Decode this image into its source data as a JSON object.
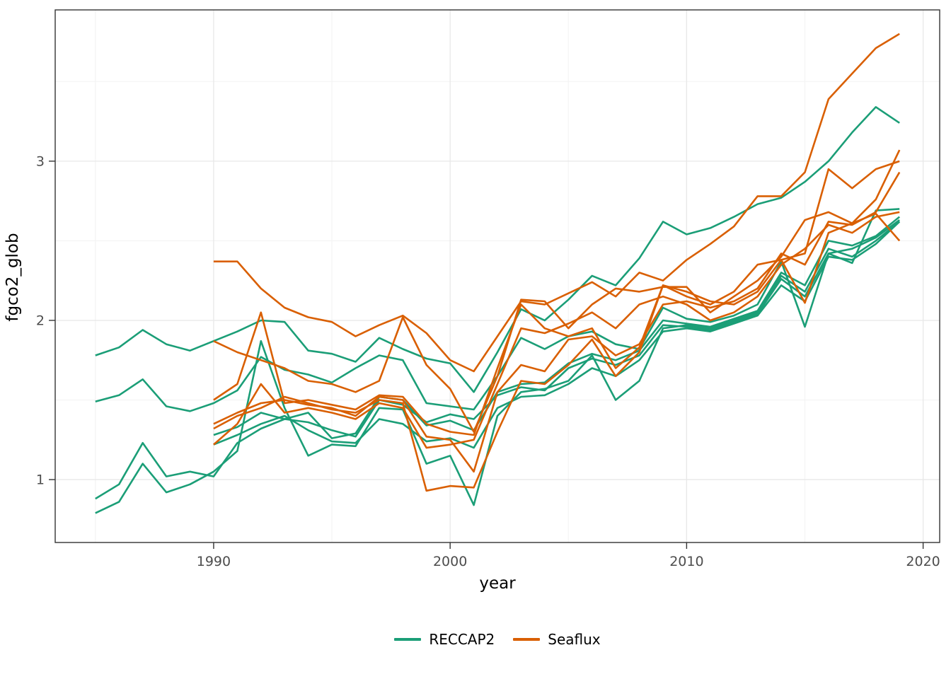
{
  "chart_data": {
    "type": "line",
    "title": "",
    "xlabel": "year",
    "ylabel": "fgco2_glob",
    "xlim": [
      1983.3,
      2020.7
    ],
    "ylim": [
      0.605,
      3.95
    ],
    "x_major_ticks": [
      1990,
      2000,
      2010,
      2020
    ],
    "x_minor_gridlines": [
      1985,
      1995,
      2005,
      2015
    ],
    "y_major_ticks": [
      1,
      2,
      3
    ],
    "y_minor_gridlines": [
      1.5,
      2.5,
      3.5
    ],
    "grid": true,
    "panel_background": "#ffffff",
    "major_grid_color": "#e8e8e8",
    "minor_grid_color": "#f4f4f4",
    "panel_border_color": "#333333",
    "tick_label_color": "#4d4d4d",
    "legend_position": "bottom",
    "legend_entries": [
      {
        "label": "RECCAP2",
        "color": "#1B9E77"
      },
      {
        "label": "Seaflux",
        "color": "#D95F02"
      }
    ],
    "series": [
      {
        "name": "RECCAP2-1",
        "group": "RECCAP2",
        "color": "#1B9E77",
        "start_year": 1985,
        "values": [
          1.78,
          1.83,
          1.94,
          1.85,
          1.81,
          1.87,
          1.93,
          2.0,
          1.99,
          1.81,
          1.79,
          1.74,
          1.89,
          1.82,
          1.76,
          1.73,
          1.55,
          1.8,
          2.07,
          2.0,
          2.13,
          2.28,
          2.22,
          2.39,
          2.62,
          2.54,
          2.58,
          2.65,
          2.73,
          2.77,
          2.87,
          3.0,
          3.18,
          3.34,
          3.24
        ]
      },
      {
        "name": "RECCAP2-2",
        "group": "RECCAP2",
        "color": "#1B9E77",
        "start_year": 1985,
        "values": [
          1.49,
          1.53,
          1.63,
          1.46,
          1.43,
          1.48,
          1.56,
          1.77,
          1.69,
          1.66,
          1.61,
          1.7,
          1.78,
          1.75,
          1.48,
          1.46,
          1.44,
          1.65,
          1.89,
          1.82,
          1.9,
          1.93,
          1.85,
          1.82,
          2.08,
          2.01,
          1.99,
          2.03,
          2.1,
          2.37,
          1.96,
          2.42,
          2.36,
          2.69,
          2.7
        ]
      },
      {
        "name": "RECCAP2-3",
        "group": "RECCAP2",
        "color": "#1B9E77",
        "start_year": 1985,
        "values": [
          0.88,
          0.97,
          1.23,
          1.02,
          1.05,
          1.02,
          1.23,
          1.32,
          1.38,
          1.42,
          1.26,
          1.29,
          1.52,
          1.5,
          1.34,
          1.37,
          1.31,
          1.55,
          1.6,
          1.61,
          1.73,
          1.79,
          1.75,
          1.81,
          2.0,
          1.98,
          1.96,
          2.01,
          2.06,
          2.3,
          2.22,
          2.5,
          2.47,
          2.53,
          2.65
        ]
      },
      {
        "name": "RECCAP2-4",
        "group": "RECCAP2",
        "color": "#1B9E77",
        "start_year": 1985,
        "values": [
          0.79,
          0.86,
          1.1,
          0.92,
          0.97,
          1.05,
          1.18,
          1.87,
          1.45,
          1.15,
          1.22,
          1.21,
          1.45,
          1.44,
          1.1,
          1.15,
          0.84,
          1.4,
          1.55,
          1.57,
          1.62,
          1.78,
          1.5,
          1.62,
          1.95,
          1.97,
          1.95,
          2.0,
          2.05,
          2.28,
          2.18,
          2.45,
          2.4,
          2.5,
          2.62
        ]
      },
      {
        "name": "RECCAP2-5",
        "group": "RECCAP2",
        "color": "#1B9E77",
        "start_year": 1990,
        "values": [
          1.28,
          1.33,
          1.42,
          1.38,
          1.36,
          1.31,
          1.27,
          1.5,
          1.47,
          1.36,
          1.41,
          1.38,
          1.53,
          1.58,
          1.56,
          1.7,
          1.76,
          1.72,
          1.78,
          1.97,
          1.96,
          1.94,
          1.99,
          2.04,
          2.26,
          2.15,
          2.42,
          2.45,
          2.52,
          2.63
        ]
      },
      {
        "name": "RECCAP2-6",
        "group": "RECCAP2",
        "color": "#1B9E77",
        "start_year": 1990,
        "values": [
          1.22,
          1.28,
          1.35,
          1.4,
          1.31,
          1.24,
          1.23,
          1.38,
          1.35,
          1.24,
          1.26,
          1.2,
          1.45,
          1.52,
          1.53,
          1.6,
          1.7,
          1.65,
          1.75,
          1.93,
          1.95,
          1.93,
          1.98,
          2.03,
          2.22,
          2.12,
          2.4,
          2.38,
          2.48,
          2.62
        ]
      },
      {
        "name": "Seaflux-1",
        "group": "Seaflux",
        "color": "#D95F02",
        "start_year": 1990,
        "values": [
          2.37,
          2.37,
          2.2,
          2.08,
          2.02,
          1.99,
          1.9,
          1.97,
          2.03,
          1.92,
          1.75,
          1.68,
          1.9,
          2.12,
          2.1,
          2.17,
          2.24,
          2.15,
          2.3,
          2.25,
          2.38,
          2.48,
          2.59,
          2.78,
          2.78,
          2.93,
          3.39,
          3.55,
          3.71,
          3.8
        ]
      },
      {
        "name": "Seaflux-2",
        "group": "Seaflux",
        "color": "#D95F02",
        "start_year": 1990,
        "values": [
          1.87,
          1.8,
          1.75,
          1.7,
          1.62,
          1.6,
          1.55,
          1.62,
          2.02,
          1.72,
          1.57,
          1.3,
          1.65,
          2.13,
          2.12,
          1.95,
          2.1,
          2.2,
          2.18,
          2.21,
          2.21,
          2.05,
          2.15,
          2.25,
          2.4,
          2.63,
          2.68,
          2.61,
          2.76,
          3.07
        ]
      },
      {
        "name": "Seaflux-3",
        "group": "Seaflux",
        "color": "#D95F02",
        "start_year": 1990,
        "values": [
          1.5,
          1.6,
          2.05,
          1.48,
          1.5,
          1.47,
          1.44,
          1.53,
          1.52,
          1.35,
          1.3,
          1.28,
          1.7,
          2.1,
          1.95,
          1.9,
          1.95,
          1.7,
          1.83,
          2.22,
          2.18,
          2.12,
          2.1,
          2.18,
          2.38,
          2.42,
          2.95,
          2.83,
          2.95,
          3.0
        ]
      },
      {
        "name": "Seaflux-4",
        "group": "Seaflux",
        "color": "#D95F02",
        "start_year": 1990,
        "values": [
          1.35,
          1.42,
          1.48,
          1.5,
          1.47,
          1.45,
          1.4,
          1.52,
          1.5,
          1.27,
          1.25,
          1.05,
          1.55,
          1.72,
          1.68,
          1.88,
          1.9,
          1.78,
          1.85,
          2.1,
          2.12,
          2.08,
          2.12,
          2.2,
          2.42,
          2.35,
          2.62,
          2.6,
          2.68,
          2.93
        ]
      },
      {
        "name": "Seaflux-5",
        "group": "Seaflux",
        "color": "#D95F02",
        "start_year": 1990,
        "values": [
          1.32,
          1.4,
          1.45,
          1.52,
          1.48,
          1.44,
          1.42,
          1.5,
          1.48,
          0.93,
          0.96,
          0.95,
          1.3,
          1.62,
          1.6,
          1.72,
          1.88,
          1.65,
          1.8,
          2.22,
          2.15,
          2.1,
          2.18,
          2.35,
          2.38,
          2.11,
          2.55,
          2.61,
          2.67,
          2.5
        ]
      },
      {
        "name": "Seaflux-6",
        "group": "Seaflux",
        "color": "#D95F02",
        "start_year": 1990,
        "values": [
          1.22,
          1.35,
          1.6,
          1.42,
          1.45,
          1.42,
          1.38,
          1.48,
          1.45,
          1.2,
          1.22,
          1.25,
          1.6,
          1.95,
          1.92,
          1.98,
          2.05,
          1.95,
          2.1,
          2.15,
          2.1,
          2.0,
          2.05,
          2.15,
          2.35,
          2.45,
          2.6,
          2.55,
          2.65,
          2.68
        ]
      }
    ]
  }
}
